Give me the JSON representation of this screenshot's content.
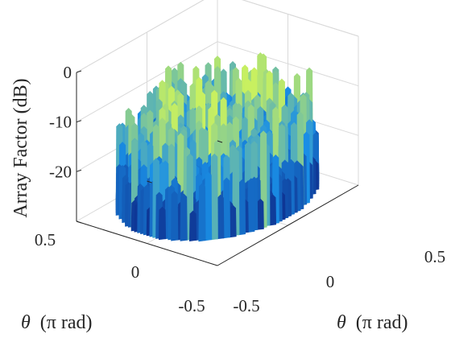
{
  "chart_data": {
    "type": "surface3d",
    "title": "",
    "zlabel": "Array Factor (dB)",
    "xlabel": {
      "symbol": "θ",
      "unit": "(π rad)"
    },
    "ylabel": {
      "symbol": "θ",
      "unit": "(π rad)"
    },
    "zlim": [
      -30,
      0
    ],
    "z_ticks": [
      0,
      -10,
      -20
    ],
    "z_tick_labels": [
      "0",
      "-10",
      "-20"
    ],
    "x_ticks": [
      -0.5,
      0,
      0.5
    ],
    "x_tick_labels": [
      "-0.5",
      "0",
      "0.5"
    ],
    "y_ticks": [
      -0.5,
      0,
      0.5
    ],
    "y_tick_labels": [
      "0.5",
      "0",
      "-0.5"
    ],
    "x_range": [
      -0.5,
      0.5
    ],
    "y_range": [
      -0.5,
      0.5
    ],
    "grid": true,
    "colormap": "winter-to-yellow",
    "colors": {
      "low": "#0a1678",
      "mid": "#1a8fe6",
      "high": "#c8f060"
    }
  }
}
